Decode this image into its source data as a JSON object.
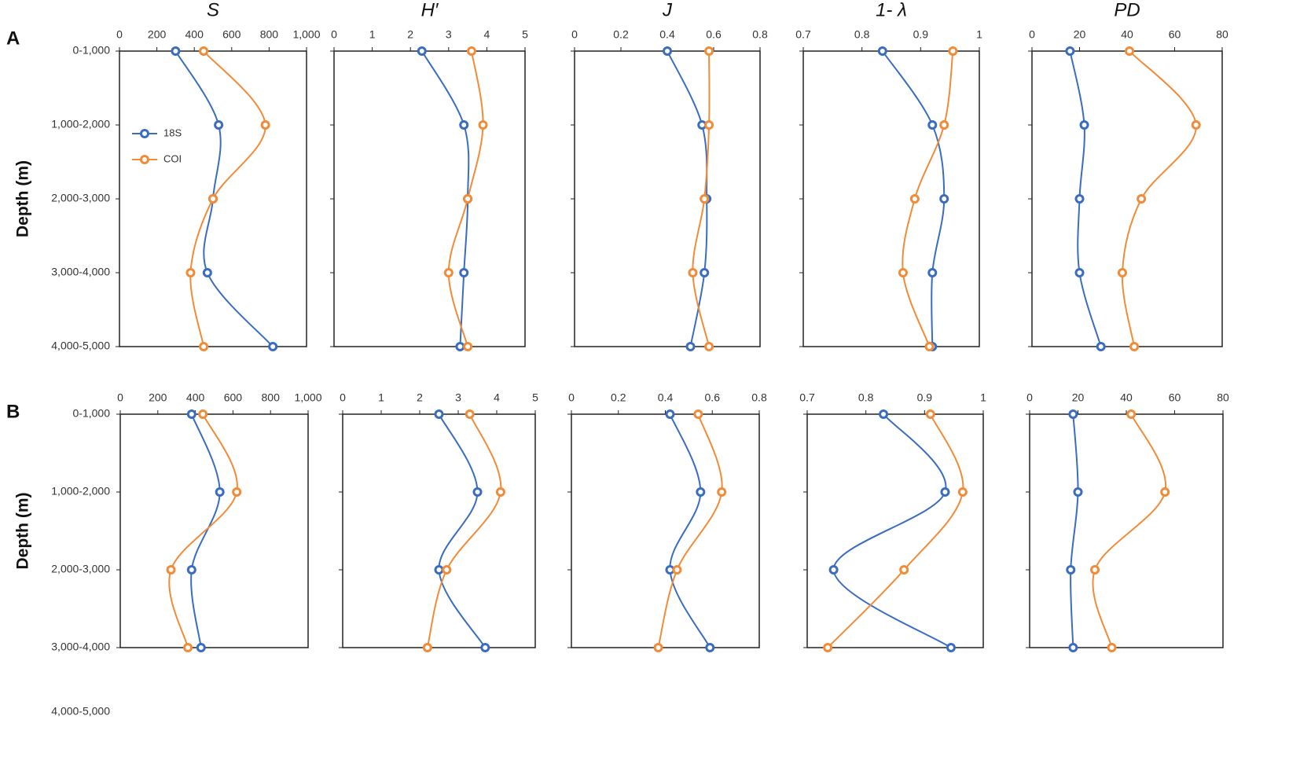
{
  "chart_data": {
    "type": "line",
    "series": [
      {
        "name": "18S",
        "color": "#3a6cc0"
      },
      {
        "name": "COI",
        "color": "#f28b38"
      }
    ],
    "rows": [
      {
        "label": "A",
        "ylabel": "Depth (m)",
        "categories": [
          "0-1,000",
          "1,000-2,000",
          "2,000-3,000",
          "3,000-4,000",
          "4,000-5,000"
        ],
        "panels": [
          {
            "title": "S",
            "xlim": [
              0,
              1000
            ],
            "xticks": [
              0,
              200,
              400,
              600,
              800,
              {
                "value": 1000,
                "label": "1,000"
              }
            ],
            "series": [
              {
                "values": [
                  300,
                  530,
                  500,
                  470,
                  820
                ]
              },
              {
                "values": [
                  450,
                  780,
                  500,
                  380,
                  450
                ]
              }
            ]
          },
          {
            "title": "H′",
            "xlim": [
              0,
              5
            ],
            "xticks": [
              0,
              1,
              2,
              3,
              4,
              5
            ],
            "series": [
              {
                "values": [
                  2.3,
                  3.4,
                  3.5,
                  3.4,
                  3.3
                ]
              },
              {
                "values": [
                  3.6,
                  3.9,
                  3.5,
                  3.0,
                  3.5
                ]
              }
            ]
          },
          {
            "title": "J",
            "xlim": [
              0,
              0.8
            ],
            "xticks": [
              0,
              0.2,
              0.4,
              0.6,
              0.8
            ],
            "series": [
              {
                "values": [
                  0.4,
                  0.55,
                  0.57,
                  0.56,
                  0.5
                ]
              },
              {
                "values": [
                  0.58,
                  0.58,
                  0.56,
                  0.51,
                  0.58
                ]
              }
            ]
          },
          {
            "title": "1- λ",
            "xlim": [
              0.7,
              1
            ],
            "xticks": [
              0.7,
              0.8,
              0.9,
              1
            ],
            "series": [
              {
                "values": [
                  0.835,
                  0.92,
                  0.94,
                  0.92,
                  0.92
                ]
              },
              {
                "values": [
                  0.955,
                  0.94,
                  0.89,
                  0.87,
                  0.915
                ]
              }
            ]
          },
          {
            "title": "PD",
            "xlim": [
              0,
              80
            ],
            "xticks": [
              0,
              20,
              40,
              60,
              80
            ],
            "series": [
              {
                "values": [
                  16,
                  22,
                  20,
                  20,
                  29
                ]
              },
              {
                "values": [
                  41,
                  69,
                  46,
                  38,
                  43
                ]
              }
            ]
          }
        ]
      },
      {
        "label": "B",
        "ylabel": "Depth (m)",
        "categories": [
          "0-1,000",
          "1,000-2,000",
          "2,000-3,000",
          "3,000-4,000"
        ],
        "extra_label": "4,000-5,000",
        "panels": [
          {
            "xlim": [
              0,
              1000
            ],
            "xticks": [
              0,
              200,
              400,
              600,
              800,
              {
                "value": 1000,
                "label": "1,000"
              }
            ],
            "series": [
              {
                "values": [
                  380,
                  530,
                  380,
                  430
                ]
              },
              {
                "values": [
                  440,
                  620,
                  270,
                  360
                ]
              }
            ]
          },
          {
            "xlim": [
              0,
              5
            ],
            "xticks": [
              0,
              1,
              2,
              3,
              4,
              5
            ],
            "series": [
              {
                "values": [
                  2.5,
                  3.5,
                  2.5,
                  3.7
                ]
              },
              {
                "values": [
                  3.3,
                  4.1,
                  2.7,
                  2.2
                ]
              }
            ]
          },
          {
            "xlim": [
              0,
              0.8
            ],
            "xticks": [
              0,
              0.2,
              0.4,
              0.6,
              0.8
            ],
            "series": [
              {
                "values": [
                  0.42,
                  0.55,
                  0.42,
                  0.59
                ]
              },
              {
                "values": [
                  0.54,
                  0.64,
                  0.45,
                  0.37
                ]
              }
            ]
          },
          {
            "xlim": [
              0.7,
              1
            ],
            "xticks": [
              0.7,
              0.8,
              0.9,
              1
            ],
            "series": [
              {
                "values": [
                  0.83,
                  0.935,
                  0.745,
                  0.945
                ]
              },
              {
                "values": [
                  0.91,
                  0.965,
                  0.865,
                  0.735
                ]
              }
            ]
          },
          {
            "xlim": [
              0,
              80
            ],
            "xticks": [
              0,
              20,
              40,
              60,
              80
            ],
            "series": [
              {
                "values": [
                  18,
                  20,
                  17,
                  18
                ]
              },
              {
                "values": [
                  42,
                  56,
                  27,
                  34
                ]
              }
            ]
          }
        ]
      }
    ]
  }
}
